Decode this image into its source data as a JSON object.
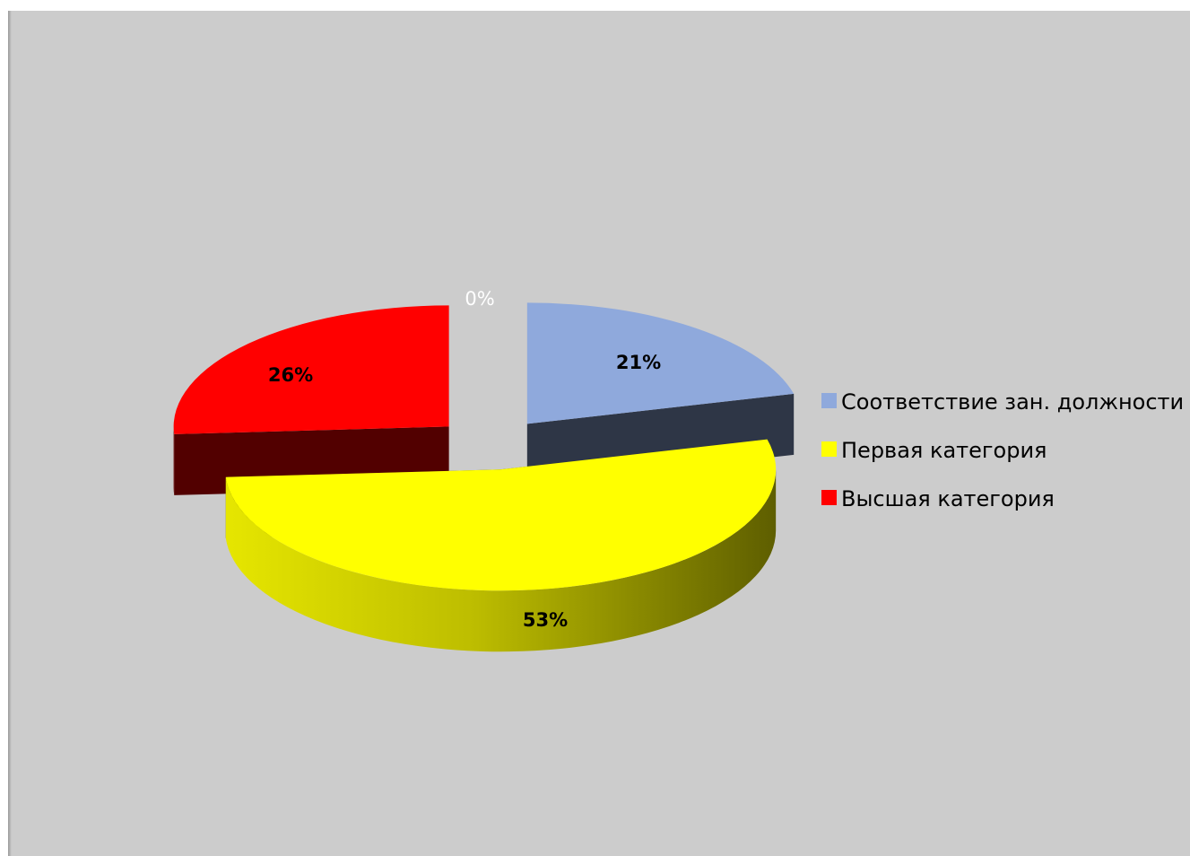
{
  "chart_data": {
    "type": "pie",
    "title": "",
    "labels": [
      "Соответствие зан. должности",
      "Первая категория",
      "Высшая категория",
      ""
    ],
    "values": [
      21,
      53,
      26,
      0
    ],
    "data_labels": [
      "21%",
      "53%",
      "26%",
      "0%"
    ],
    "colors": [
      "#8FA9DC",
      "#FFFF00",
      "#FF0000",
      "#FFFFFF"
    ],
    "legend_position": "right",
    "style": "3d-exploded"
  },
  "legend": [
    {
      "label": "Соответствие зан. должности",
      "color": "#8FA9DC"
    },
    {
      "label": "Первая категория",
      "color": "#FFFF00"
    },
    {
      "label": "Высшая категория",
      "color": "#FF0000"
    }
  ],
  "colors": {
    "background": "#CCCCCC",
    "frame_border": "#8A8A8A"
  }
}
